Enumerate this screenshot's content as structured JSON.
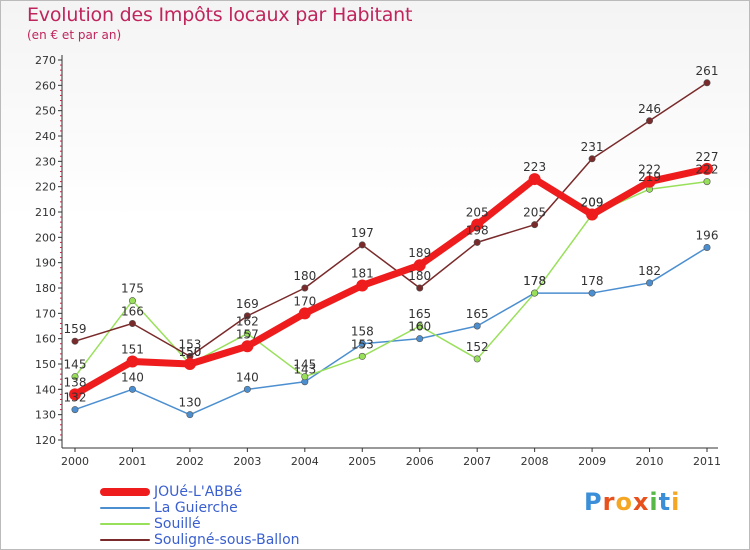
{
  "chart_data": {
    "type": "line",
    "title": "Evolution des Impôts locaux par Habitant",
    "subtitle": "(en € et par an)",
    "xlabel": "",
    "ylabel": "",
    "ylim": [
      120,
      270
    ],
    "y_ticks": [
      120,
      130,
      140,
      150,
      160,
      170,
      180,
      190,
      200,
      210,
      220,
      230,
      240,
      250,
      260,
      270
    ],
    "categories": [
      "2000",
      "2001",
      "2002",
      "2003",
      "2004",
      "2005",
      "2006",
      "2007",
      "2008",
      "2009",
      "2010",
      "2011"
    ],
    "grid": false,
    "legend_position": "bottom-left",
    "series": [
      {
        "name": "JOUé-L'ABBé",
        "values": [
          138,
          151,
          150,
          157,
          170,
          181,
          189,
          205,
          223,
          209,
          222,
          227
        ],
        "color": "#ee1c1c",
        "emphasis": true
      },
      {
        "name": "La Guierche",
        "values": [
          132,
          140,
          130,
          140,
          143,
          158,
          160,
          165,
          178,
          178,
          182,
          196
        ],
        "color": "#4c8fd0",
        "emphasis": false
      },
      {
        "name": "Souillé",
        "values": [
          145,
          175,
          150,
          162,
          145,
          153,
          165,
          152,
          178,
          209,
          219,
          222
        ],
        "color": "#99e05a",
        "emphasis": false
      },
      {
        "name": "Souligné-sous-Ballon",
        "values": [
          159,
          166,
          153,
          169,
          180,
          197,
          180,
          198,
          205,
          231,
          246,
          261
        ],
        "color": "#7a2a2a",
        "emphasis": false
      }
    ]
  },
  "branding": {
    "logo_letters": [
      "P",
      "r",
      "o",
      "x",
      "i",
      "t",
      "i"
    ],
    "logo_colors": [
      "#3b8fd8",
      "#e8501c",
      "#f5a623",
      "#e8501c",
      "#58b847",
      "#3b8fd8",
      "#f5a623"
    ]
  }
}
